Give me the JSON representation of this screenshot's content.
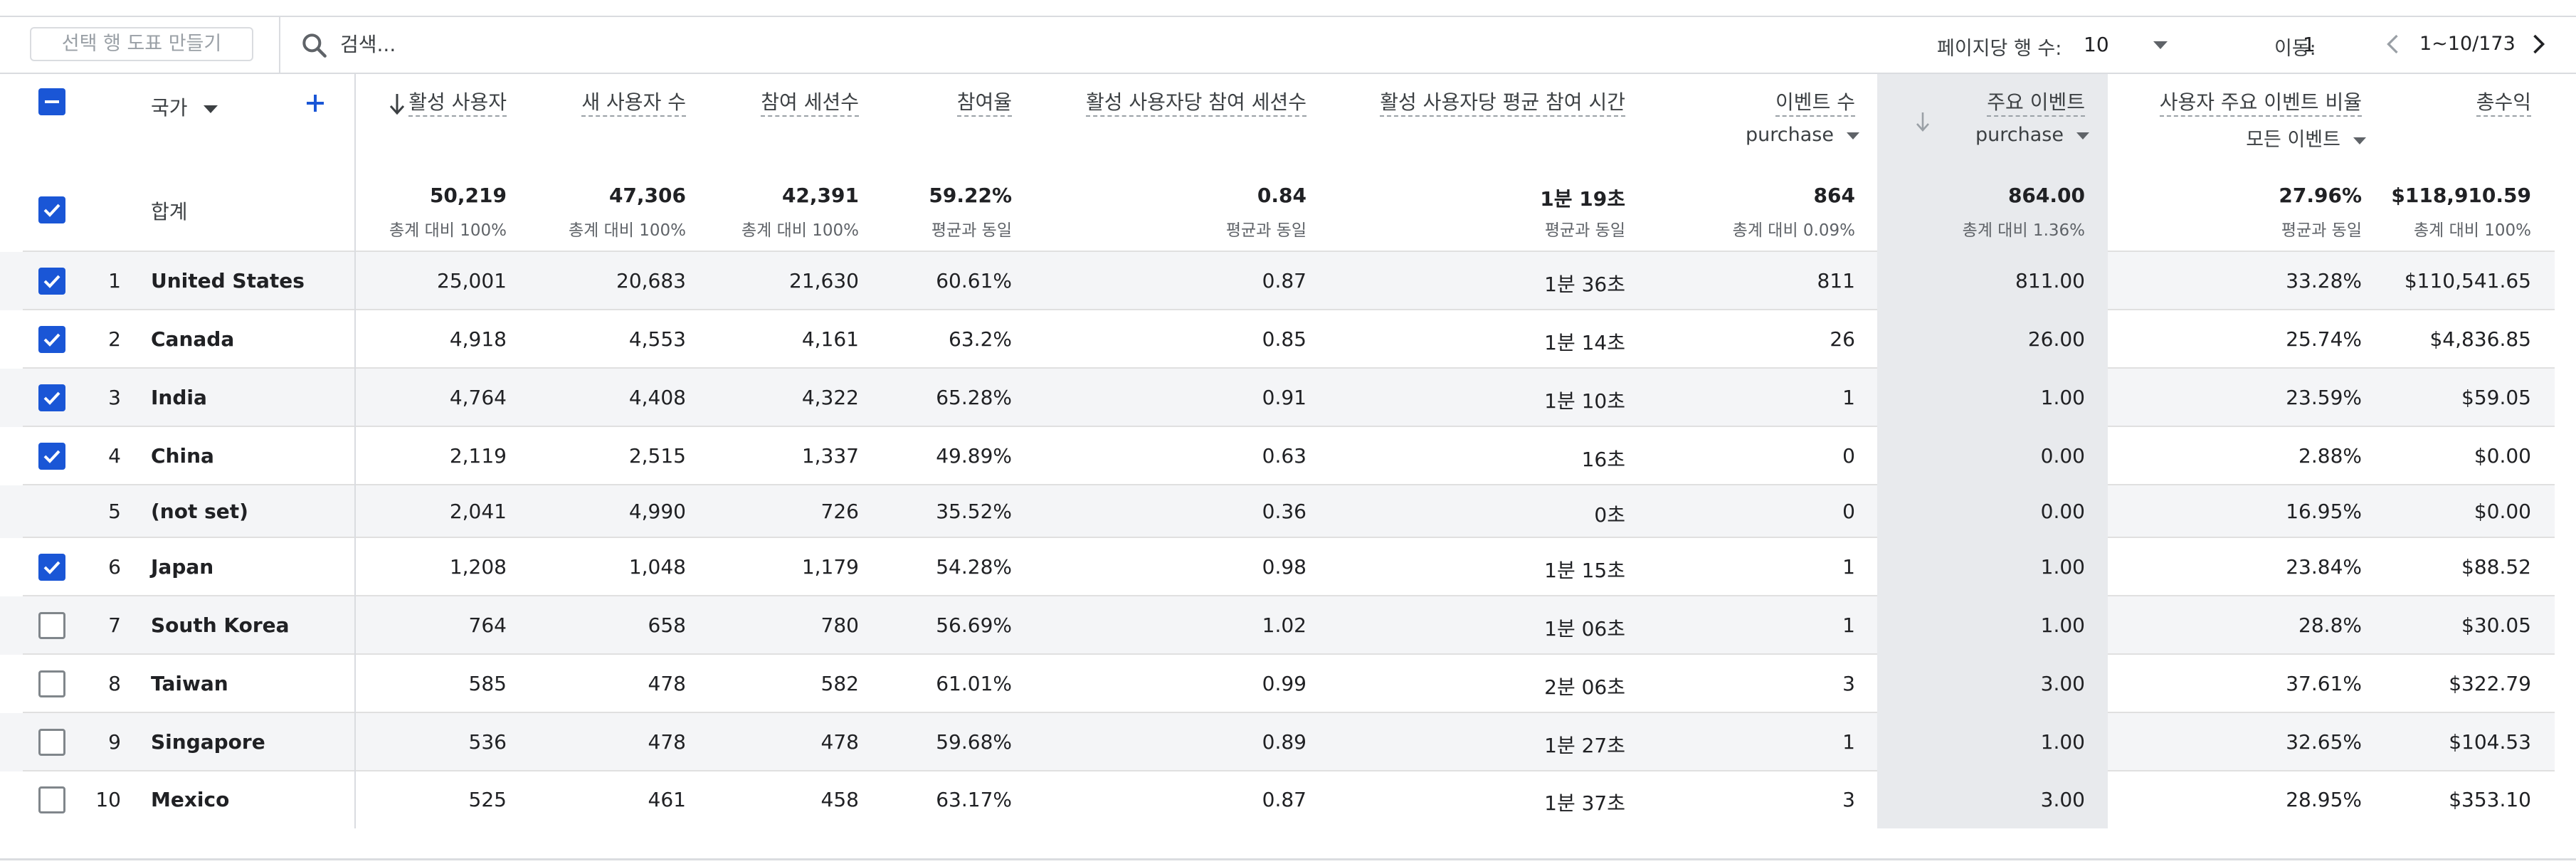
{
  "toolbar": {
    "chart_button": "선택 행 도표 만들기",
    "search_placeholder": "검색...",
    "rows_per_page_label": "페이지당 행 수:",
    "rows_per_page_value": "10",
    "goto_label": "이동:",
    "goto_value": "1",
    "page_range": "1~10/173"
  },
  "header": {
    "dimension": "국가",
    "columns": [
      {
        "title": "활성 사용자"
      },
      {
        "title": "새 사용자 수"
      },
      {
        "title": "참여 세션수"
      },
      {
        "title": "참여율"
      },
      {
        "title": "활성 사용자당 참여 세션수"
      },
      {
        "title": "활성 사용자당 평균 참여 시간"
      },
      {
        "title": "이벤트 수",
        "sub": "purchase"
      },
      {
        "title": "주요 이벤트",
        "sub": "purchase"
      },
      {
        "title": "사용자 주요 이벤트 비율",
        "sub": "모든 이벤트"
      },
      {
        "title": "총수익"
      }
    ]
  },
  "totals": {
    "label": "합계",
    "values": [
      "50,219",
      "47,306",
      "42,391",
      "59.22%",
      "0.84",
      "1분 19초",
      "864",
      "864.00",
      "27.96%",
      "$118,910.59"
    ],
    "subs": [
      "총계 대비 100%",
      "총계 대비 100%",
      "총계 대비 100%",
      "평균과 동일",
      "평균과 동일",
      "평균과 동일",
      "총계 대비 0.09%",
      "총계 대비 1.36%",
      "평균과 동일",
      "총계 대비 100%"
    ]
  },
  "rows": [
    {
      "rank": "1",
      "country": "United States",
      "checked": true,
      "values": [
        "25,001",
        "20,683",
        "21,630",
        "60.61%",
        "0.87",
        "1분 36초",
        "811",
        "811.00",
        "33.28%",
        "$110,541.65"
      ]
    },
    {
      "rank": "2",
      "country": "Canada",
      "checked": true,
      "values": [
        "4,918",
        "4,553",
        "4,161",
        "63.2%",
        "0.85",
        "1분 14초",
        "26",
        "26.00",
        "25.74%",
        "$4,836.85"
      ]
    },
    {
      "rank": "3",
      "country": "India",
      "checked": true,
      "values": [
        "4,764",
        "4,408",
        "4,322",
        "65.28%",
        "0.91",
        "1분 10초",
        "1",
        "1.00",
        "23.59%",
        "$59.05"
      ]
    },
    {
      "rank": "4",
      "country": "China",
      "checked": true,
      "values": [
        "2,119",
        "2,515",
        "1,337",
        "49.89%",
        "0.63",
        "16초",
        "0",
        "0.00",
        "2.88%",
        "$0.00"
      ]
    },
    {
      "rank": "5",
      "country": "(not set)",
      "checked": null,
      "values": [
        "2,041",
        "4,990",
        "726",
        "35.52%",
        "0.36",
        "0초",
        "0",
        "0.00",
        "16.95%",
        "$0.00"
      ]
    },
    {
      "rank": "6",
      "country": "Japan",
      "checked": true,
      "values": [
        "1,208",
        "1,048",
        "1,179",
        "54.28%",
        "0.98",
        "1분 15초",
        "1",
        "1.00",
        "23.84%",
        "$88.52"
      ]
    },
    {
      "rank": "7",
      "country": "South Korea",
      "checked": false,
      "values": [
        "764",
        "658",
        "780",
        "56.69%",
        "1.02",
        "1분 06초",
        "1",
        "1.00",
        "28.8%",
        "$30.05"
      ]
    },
    {
      "rank": "8",
      "country": "Taiwan",
      "checked": false,
      "values": [
        "585",
        "478",
        "582",
        "61.01%",
        "0.99",
        "2분 06초",
        "3",
        "3.00",
        "37.61%",
        "$322.79"
      ]
    },
    {
      "rank": "9",
      "country": "Singapore",
      "checked": false,
      "values": [
        "536",
        "478",
        "478",
        "59.68%",
        "0.89",
        "1분 27초",
        "1",
        "1.00",
        "32.65%",
        "$104.53"
      ]
    },
    {
      "rank": "10",
      "country": "Mexico",
      "checked": false,
      "values": [
        "525",
        "461",
        "458",
        "63.17%",
        "0.87",
        "1분 37초",
        "3",
        "3.00",
        "28.95%",
        "$353.10"
      ]
    }
  ],
  "colors": {
    "accent": "#1a56d6",
    "sorted_column_bg": "#e8eaed",
    "stripe": "#f4f5f7"
  }
}
